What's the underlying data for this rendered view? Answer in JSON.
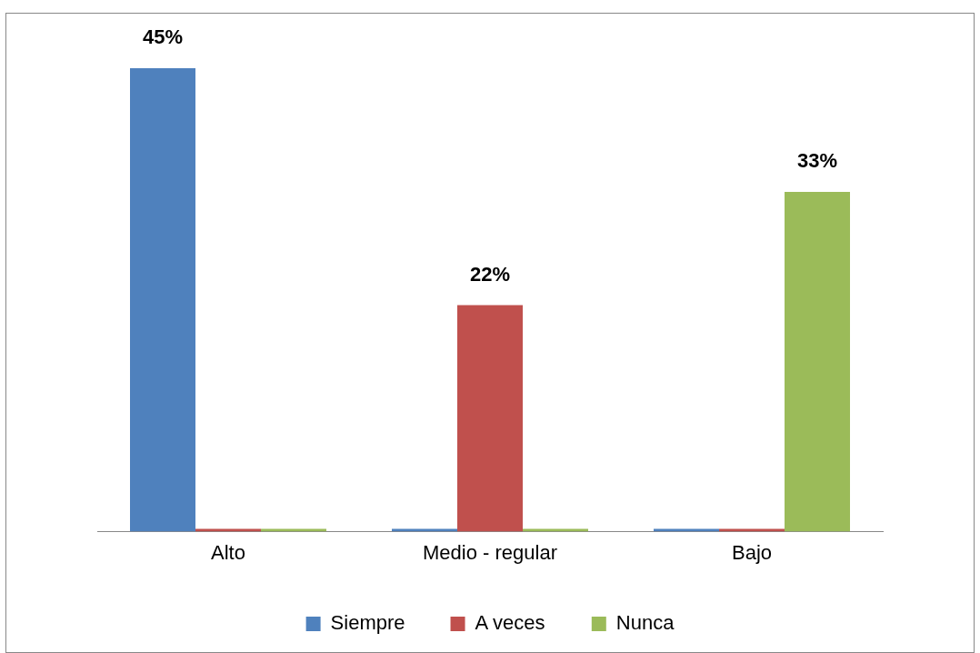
{
  "chart_data": {
    "type": "bar",
    "categories": [
      "Alto",
      "Medio - regular",
      "Bajo"
    ],
    "series": [
      {
        "name": "Siempre",
        "color": "#4f81bd",
        "values": [
          45,
          0,
          0
        ],
        "value_labels": [
          "45%",
          null,
          null
        ]
      },
      {
        "name": "A veces",
        "color": "#c0504d",
        "values": [
          0,
          22,
          0
        ],
        "value_labels": [
          null,
          "22%",
          null
        ]
      },
      {
        "name": "Nunca",
        "color": "#9bbb59",
        "values": [
          0,
          0,
          33
        ],
        "value_labels": [
          null,
          null,
          "33%"
        ]
      }
    ],
    "legend": "bottom",
    "grid": false
  }
}
